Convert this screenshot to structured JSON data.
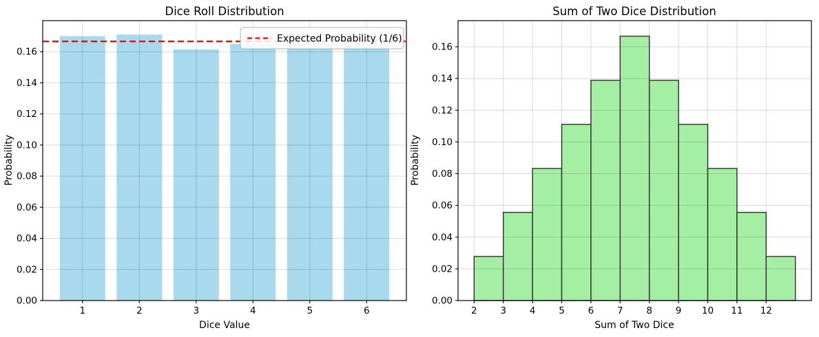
{
  "figure": {
    "background": "#ffffff"
  },
  "chart_data": [
    {
      "type": "bar",
      "title": "Dice Roll Distribution",
      "xlabel": "Dice Value",
      "ylabel": "Probability",
      "categories": [
        "1",
        "2",
        "3",
        "4",
        "5",
        "6"
      ],
      "values": [
        0.17,
        0.171,
        0.1615,
        0.165,
        0.1655,
        0.165
      ],
      "bar_color": "#a8d9ec",
      "bar_width": 0.8,
      "xlim": [
        0.3,
        6.7
      ],
      "ylim": [
        0,
        0.18
      ],
      "yticks": [
        0.0,
        0.02,
        0.04,
        0.06,
        0.08,
        0.1,
        0.12,
        0.14,
        0.16
      ],
      "grid": true,
      "legend_position": "upper right",
      "reference_line": {
        "value": 0.16667,
        "label": "Expected Probability (1/6)",
        "color": "#ff0000",
        "style": "dashed"
      }
    },
    {
      "type": "bar",
      "subtype": "histogram",
      "title": "Sum of Two Dice Distribution",
      "xlabel": "Sum of Two Dice",
      "ylabel": "Probability",
      "bin_edges": [
        2,
        3,
        4,
        5,
        6,
        7,
        8,
        9,
        10,
        11,
        12,
        13
      ],
      "categories": [
        "2",
        "3",
        "4",
        "5",
        "6",
        "7",
        "8",
        "9",
        "10",
        "11",
        "12"
      ],
      "values": [
        0.0278,
        0.0556,
        0.0833,
        0.1111,
        0.1389,
        0.1667,
        0.1389,
        0.1111,
        0.0833,
        0.0556,
        0.0278
      ],
      "bar_color": "#a5efa5",
      "edge_color": "#3c3c3c",
      "xticks": [
        2,
        3,
        4,
        5,
        6,
        7,
        8,
        9,
        10,
        11,
        12
      ],
      "xlim": [
        1.45,
        13.55
      ],
      "ylim": [
        0,
        0.1765
      ],
      "yticks": [
        0.0,
        0.02,
        0.04,
        0.06,
        0.08,
        0.1,
        0.12,
        0.14,
        0.16
      ],
      "grid": true
    }
  ]
}
